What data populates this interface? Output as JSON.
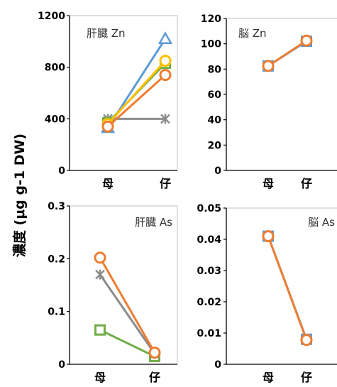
{
  "y_axis_label": "濃度 (μg g-1 DW)",
  "colors": {
    "blue": "#5b9bd5",
    "orange": "#ed7d31",
    "gray": "#8c8c8c",
    "yellow": "#ffc000",
    "green": "#70ad47"
  },
  "chart_data": [
    {
      "type": "line",
      "title": "肝臓 Zn",
      "categories": [
        "母",
        "仔"
      ],
      "ylim": [
        0,
        1200
      ],
      "yticks": [
        0,
        400,
        800,
        1200
      ],
      "series": [
        {
          "color": "#8c8c8c",
          "marker": "asterisk",
          "values": [
            400,
            400
          ]
        },
        {
          "color": "#5b9bd5",
          "marker": "triangle",
          "values": [
            330,
            1020
          ]
        },
        {
          "color": "#70ad47",
          "marker": "square",
          "values": [
            370,
            830
          ]
        },
        {
          "color": "#ffc000",
          "marker": "circle",
          "values": [
            360,
            850
          ]
        },
        {
          "color": "#ed7d31",
          "marker": "circle",
          "values": [
            340,
            740
          ]
        }
      ]
    },
    {
      "type": "line",
      "title": "脳 Zn",
      "categories": [
        "母",
        "仔"
      ],
      "ylim": [
        0,
        120
      ],
      "yticks": [
        0,
        20,
        40,
        60,
        80,
        100,
        120
      ],
      "series": [
        {
          "color": "#5b9bd5",
          "marker": "square",
          "values": [
            82.5,
            102
          ]
        },
        {
          "color": "#ed7d31",
          "marker": "circle",
          "values": [
            82.5,
            102.5
          ]
        }
      ]
    },
    {
      "type": "line",
      "title": "肝臓 As",
      "categories": [
        "母",
        "仔"
      ],
      "ylim": [
        0,
        0.3
      ],
      "yticks": [
        0,
        0.1,
        0.2,
        0.3
      ],
      "series": [
        {
          "color": "#70ad47",
          "marker": "square",
          "values": [
            0.065,
            0.015
          ]
        },
        {
          "color": "#8c8c8c",
          "marker": "asterisk",
          "values": [
            0.17,
            0.02
          ]
        },
        {
          "color": "#ed7d31",
          "marker": "circle",
          "values": [
            0.202,
            0.022
          ]
        }
      ]
    },
    {
      "type": "line",
      "title": "脳 As",
      "categories": [
        "母",
        "仔"
      ],
      "ylim": [
        0,
        0.05
      ],
      "yticks": [
        0,
        0.01,
        0.02,
        0.03,
        0.04,
        0.05
      ],
      "series": [
        {
          "color": "#5b9bd5",
          "marker": "square",
          "values": [
            0.041,
            0.008
          ]
        },
        {
          "color": "#ed7d31",
          "marker": "circle",
          "values": [
            0.041,
            0.0078
          ]
        }
      ]
    }
  ]
}
